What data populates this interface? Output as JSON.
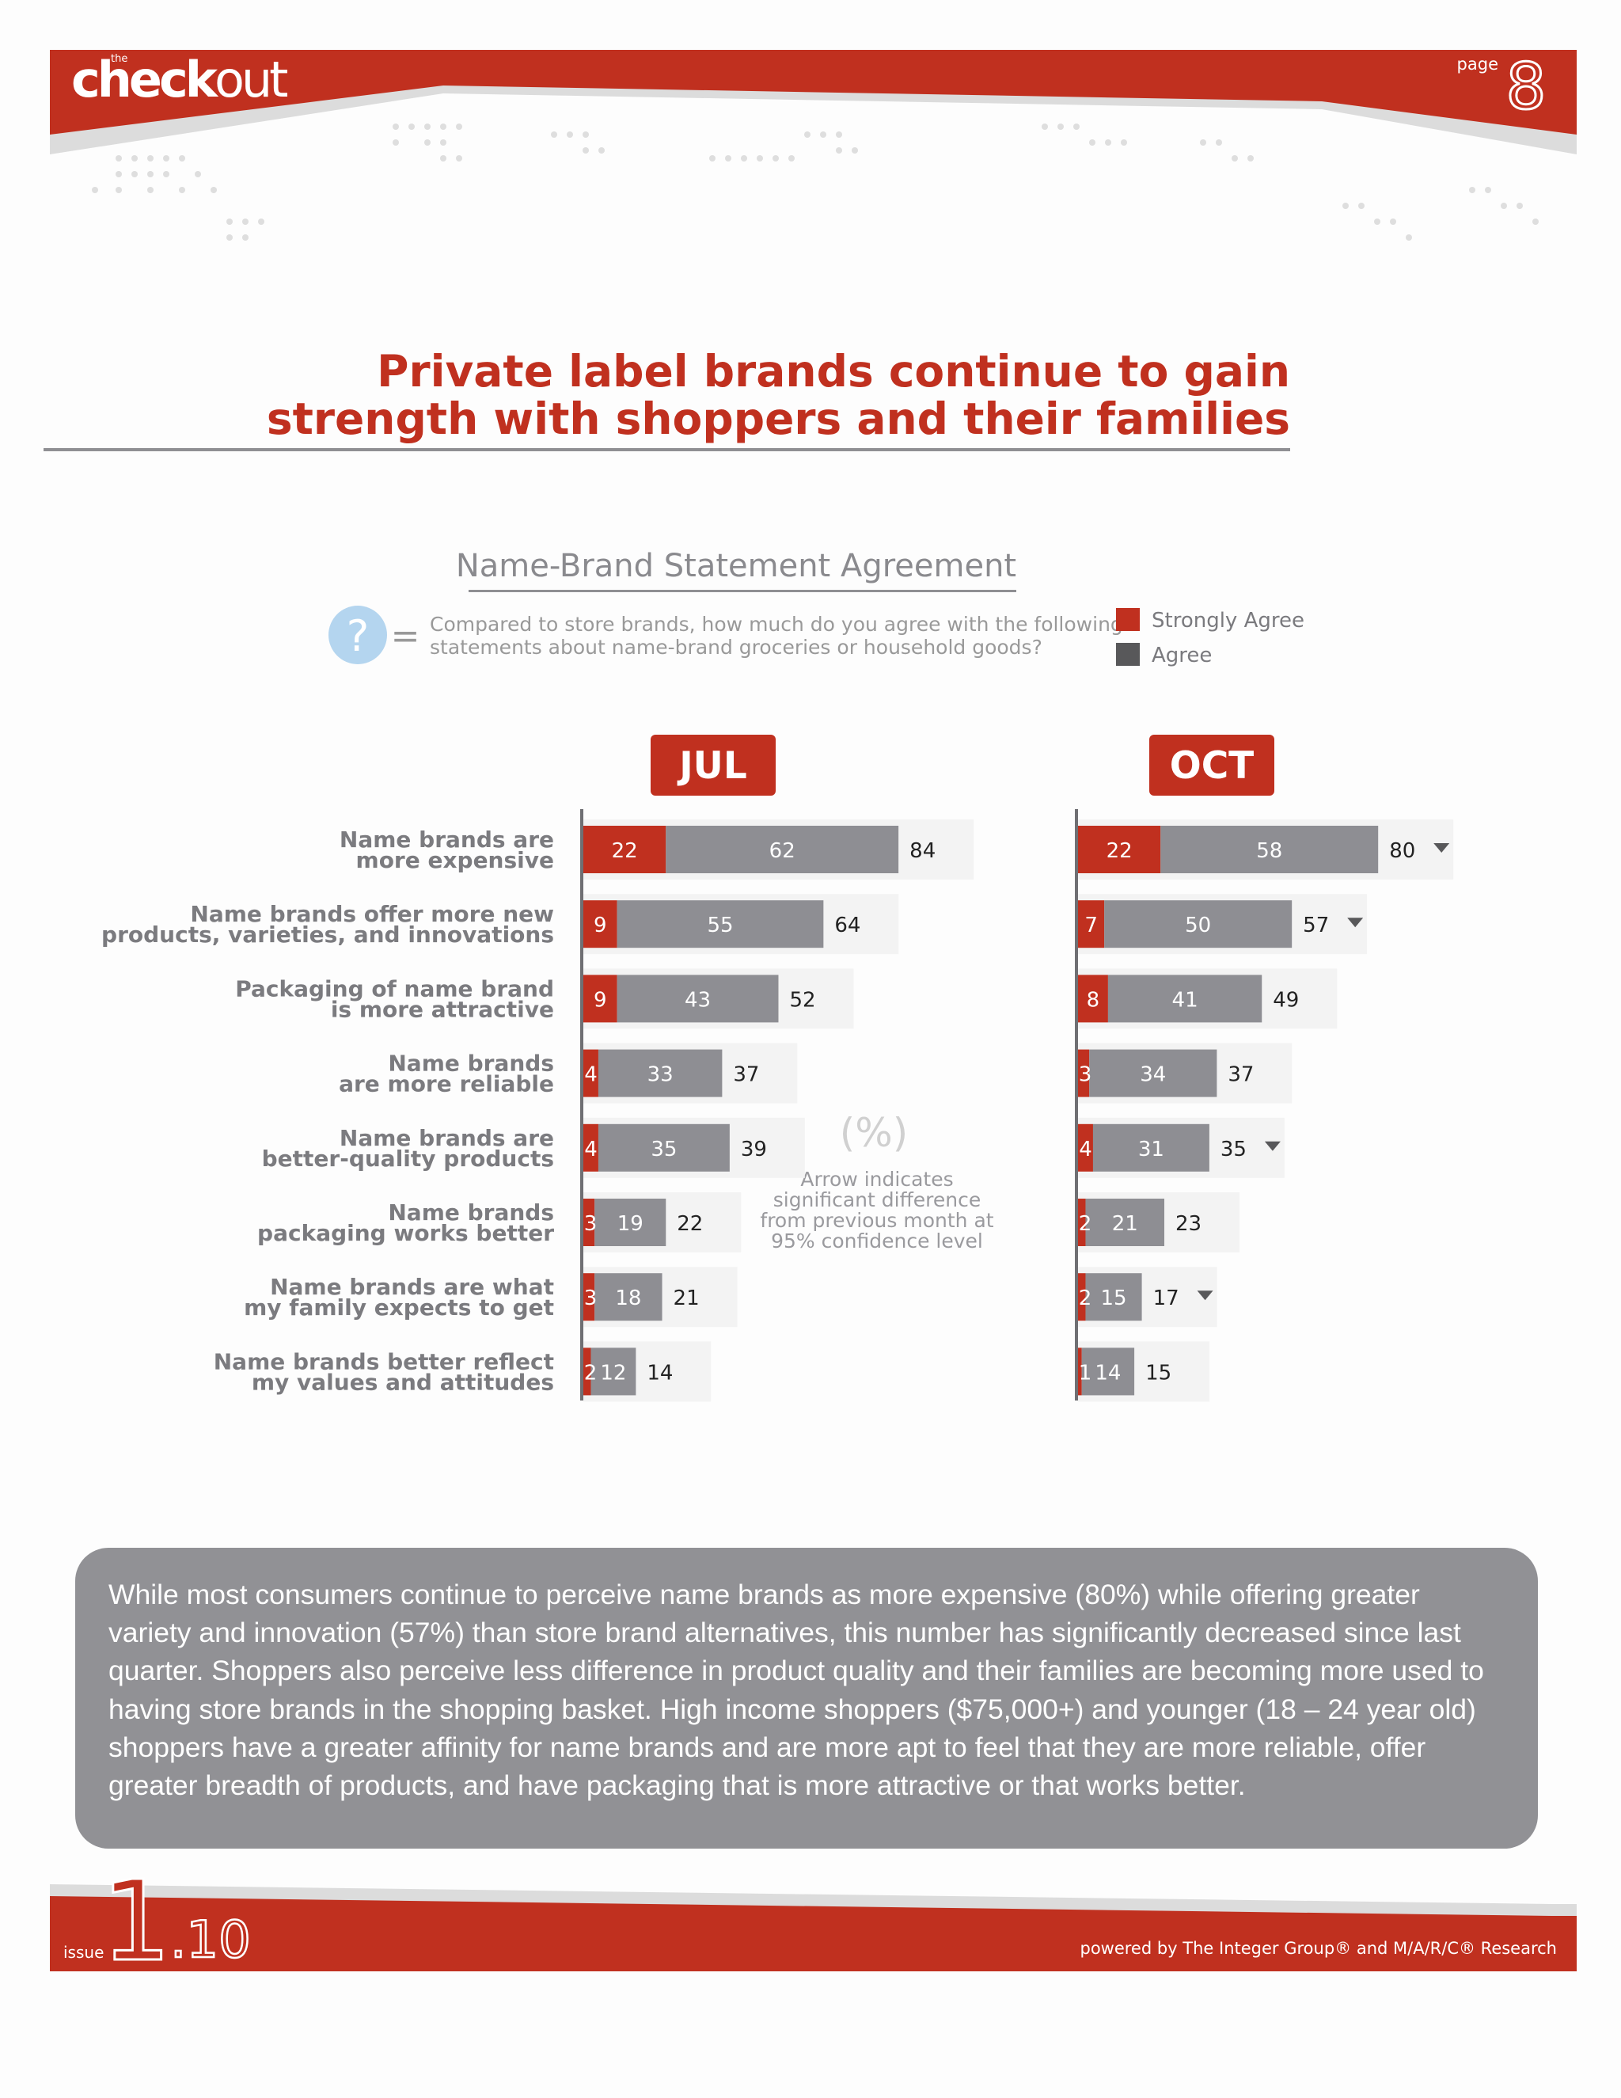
{
  "header": {
    "brand_small": "the",
    "brand_bold": "check",
    "brand_light": "out",
    "page_label": "page",
    "page_number": "8"
  },
  "headline": {
    "line1": "Private label brands continue to gain",
    "line2": "strength with shoppers and their families"
  },
  "colors": {
    "accent_red": "#c0301f",
    "dark_red": "#a41e12",
    "bar_gray": "#8e8e93",
    "legend_dark": "#58585a",
    "icon_blue": "#b4d5ef"
  },
  "chart_data": {
    "type": "bar",
    "orientation": "horizontal",
    "stacked": true,
    "title": "Name-Brand Statement Agreement",
    "question_icon": "question-mark-icon",
    "question_symbol": "?",
    "question_equals": "=",
    "question": {
      "line1": "Compared to store brands, how much do you agree with the following",
      "line2": "statements about name-brand groceries or household goods?"
    },
    "legend": [
      "Strongly Agree",
      "Agree"
    ],
    "unit_label": "(%)",
    "note": {
      "line1": "Arrow indicates",
      "line2": "significant difference",
      "line3": "from previous month at",
      "line4": "95% confidence level"
    },
    "categories": [
      [
        "Name brands are",
        "more expensive"
      ],
      [
        "Name brands offer more new",
        "products, varieties, and innovations"
      ],
      [
        "Packaging of name brand",
        "is more attractive"
      ],
      [
        "Name brands",
        "are more reliable"
      ],
      [
        "Name brands are",
        "better-quality products"
      ],
      [
        "Name brands",
        "packaging works better"
      ],
      [
        "Name brands are what",
        "my family expects to get"
      ],
      [
        "Name brands better reflect",
        "my values and attitudes"
      ]
    ],
    "panels": [
      {
        "name": "JUL",
        "series": [
          {
            "name": "Strongly Agree",
            "values": [
              22,
              9,
              9,
              4,
              4,
              3,
              3,
              2
            ]
          },
          {
            "name": "Agree",
            "values": [
              62,
              55,
              43,
              33,
              35,
              19,
              18,
              12
            ]
          }
        ],
        "totals": [
          84,
          64,
          52,
          37,
          39,
          22,
          21,
          14
        ],
        "significant_decrease": [
          false,
          false,
          false,
          false,
          false,
          false,
          false,
          false
        ]
      },
      {
        "name": "OCT",
        "series": [
          {
            "name": "Strongly Agree",
            "values": [
              22,
              7,
              8,
              3,
              4,
              2,
              2,
              1
            ]
          },
          {
            "name": "Agree",
            "values": [
              58,
              50,
              41,
              34,
              31,
              21,
              15,
              14
            ]
          }
        ],
        "totals": [
          80,
          57,
          49,
          37,
          35,
          23,
          17,
          15
        ],
        "significant_decrease": [
          true,
          true,
          false,
          false,
          true,
          false,
          true,
          false
        ]
      }
    ]
  },
  "summary": "While most consumers continue to perceive name brands as more expensive (80%) while offering greater variety and innovation (57%) than store brand alternatives, this number has significantly decreased since last quarter.  Shoppers also perceive less difference in product quality and their families are becoming more used to having store brands in the shopping basket.  High income shoppers ($75,000+) and younger (18 – 24 year old) shoppers have a greater affinity for name brands and are more apt to feel that they are more reliable, offer greater breadth of products, and have packaging that is more attractive or that works better.",
  "footer": {
    "issue_label": "issue",
    "issue_big": "1",
    "issue_small": ".10",
    "credit": "powered by The Integer Group® and M/A/R/C® Research"
  }
}
